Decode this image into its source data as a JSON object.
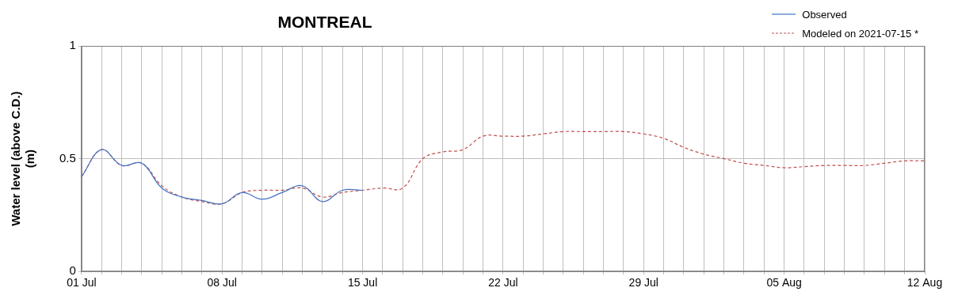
{
  "chart_data": {
    "type": "line",
    "title": "MONTREAL",
    "y_label": "Water level (above C.D.)\n(m)",
    "categories": [
      "01 Jul",
      null,
      null,
      null,
      null,
      null,
      null,
      "08 Jul",
      null,
      null,
      null,
      null,
      null,
      null,
      "15 Jul",
      null,
      null,
      null,
      null,
      null,
      null,
      "22 Jul",
      null,
      null,
      null,
      null,
      null,
      null,
      "29 Jul",
      null,
      null,
      null,
      null,
      null,
      null,
      "05 Aug",
      null,
      null,
      null,
      null,
      null,
      null,
      "12 Aug"
    ],
    "series": [
      {
        "name": "Observed",
        "color": "#4472c4",
        "line_style": "solid",
        "values": [
          0.42,
          0.54,
          0.47,
          0.48,
          0.37,
          0.33,
          0.315,
          0.3,
          0.35,
          0.32,
          0.35,
          0.38,
          0.31,
          0.36,
          0.36,
          null,
          null,
          null,
          null,
          null,
          null,
          null,
          null,
          null,
          null,
          null,
          null,
          null,
          null,
          null,
          null,
          null,
          null,
          null,
          null,
          null,
          null,
          null,
          null,
          null,
          null,
          null,
          null
        ]
      },
      {
        "name": "Modeled on 2021-07-15 *",
        "color": "#c0504d",
        "line_style": "dashed",
        "values": [
          0.42,
          0.54,
          0.47,
          0.48,
          0.38,
          0.33,
          0.31,
          0.3,
          0.35,
          0.36,
          0.36,
          0.37,
          0.33,
          0.35,
          0.36,
          0.37,
          0.37,
          0.5,
          0.53,
          0.54,
          0.6,
          0.6,
          0.6,
          0.61,
          0.62,
          0.62,
          0.62,
          0.62,
          0.61,
          0.59,
          0.55,
          0.52,
          0.5,
          0.48,
          0.47,
          0.46,
          0.465,
          0.47,
          0.47,
          0.47,
          0.48,
          0.49,
          0.49
        ]
      }
    ],
    "ylim": [
      0,
      1
    ],
    "yticks": [
      0,
      0.5,
      1
    ],
    "grid": true,
    "legend": "top right"
  }
}
